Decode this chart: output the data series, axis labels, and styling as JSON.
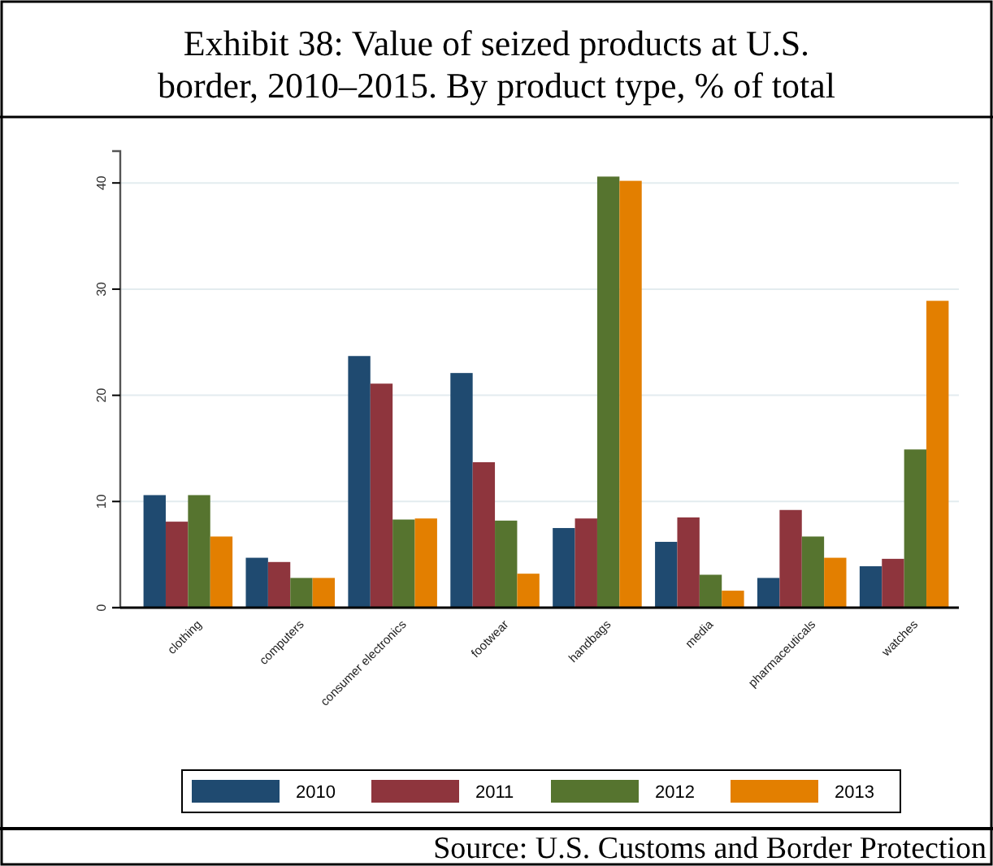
{
  "chart_data": {
    "type": "bar",
    "title": "Exhibit 38: Value of seized products at U.S. border, 2010–2015.  By product type, % of total",
    "categories": [
      "clothing",
      "computers",
      "consumer electronics",
      "footwear",
      "handbags",
      "media",
      "pharmaceuticals",
      "watches"
    ],
    "series": [
      {
        "name": "2010",
        "color": "#1f4a70",
        "values": [
          10.6,
          4.7,
          23.7,
          22.1,
          7.5,
          6.2,
          2.8,
          3.9
        ]
      },
      {
        "name": "2011",
        "color": "#8e353d",
        "values": [
          8.1,
          4.3,
          21.1,
          13.7,
          8.4,
          8.5,
          9.2,
          4.6
        ]
      },
      {
        "name": "2012",
        "color": "#56742f",
        "values": [
          10.6,
          2.8,
          8.3,
          8.2,
          40.6,
          3.1,
          6.7,
          14.9
        ]
      },
      {
        "name": "2013",
        "color": "#e37f00",
        "values": [
          6.7,
          2.8,
          8.4,
          3.2,
          40.2,
          1.6,
          4.7,
          28.9
        ]
      }
    ],
    "ylim": [
      0,
      43
    ],
    "yticks": [
      0,
      10,
      20,
      30,
      40
    ],
    "grid": "y",
    "legend": "bottom",
    "annotations": [
      "Source: U.S. Customs and Border Protection"
    ]
  }
}
